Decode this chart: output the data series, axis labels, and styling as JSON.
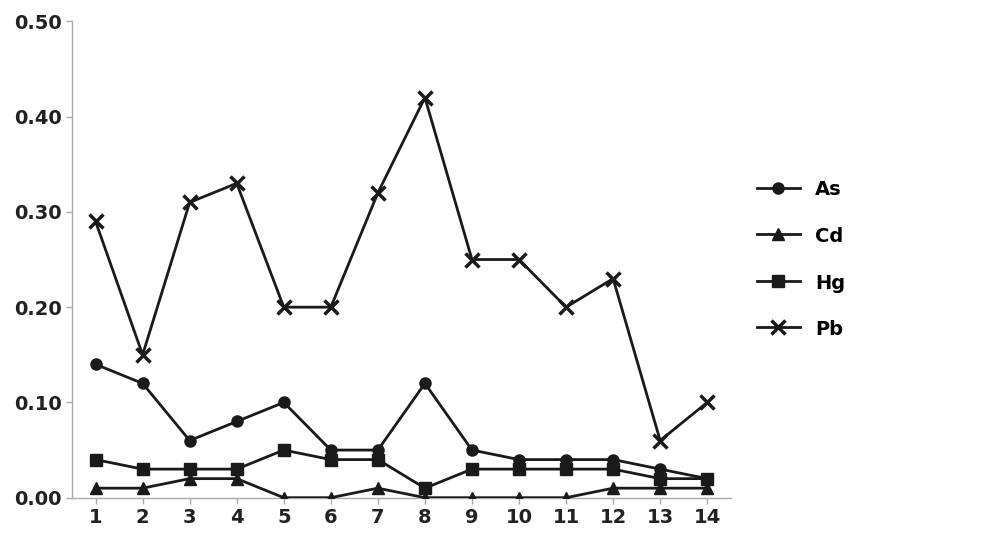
{
  "x": [
    1,
    2,
    3,
    4,
    5,
    6,
    7,
    8,
    9,
    10,
    11,
    12,
    13,
    14
  ],
  "As": [
    0.14,
    0.12,
    0.06,
    0.08,
    0.1,
    0.05,
    0.05,
    0.12,
    0.05,
    0.04,
    0.04,
    0.04,
    0.03,
    0.02
  ],
  "Cd": [
    0.01,
    0.01,
    0.02,
    0.02,
    0.0,
    0.0,
    0.01,
    0.0,
    0.0,
    0.0,
    0.0,
    0.01,
    0.01,
    0.01
  ],
  "Hg": [
    0.04,
    0.03,
    0.03,
    0.03,
    0.05,
    0.04,
    0.04,
    0.01,
    0.03,
    0.03,
    0.03,
    0.03,
    0.02,
    0.02
  ],
  "Pb": [
    0.29,
    0.15,
    0.31,
    0.33,
    0.2,
    0.2,
    0.32,
    0.42,
    0.25,
    0.25,
    0.2,
    0.23,
    0.06,
    0.1
  ],
  "line_color": "#1a1a1a",
  "background_color": "#ffffff",
  "ylim": [
    0.0,
    0.5
  ],
  "yticks": [
    0.0,
    0.1,
    0.2,
    0.3,
    0.4,
    0.5
  ],
  "xlim": [
    0.5,
    14.5
  ],
  "spine_color": "#aaaaaa",
  "tick_labelsize": 14,
  "legend_fontsize": 14,
  "linewidth": 2.0,
  "marker_size": 8
}
